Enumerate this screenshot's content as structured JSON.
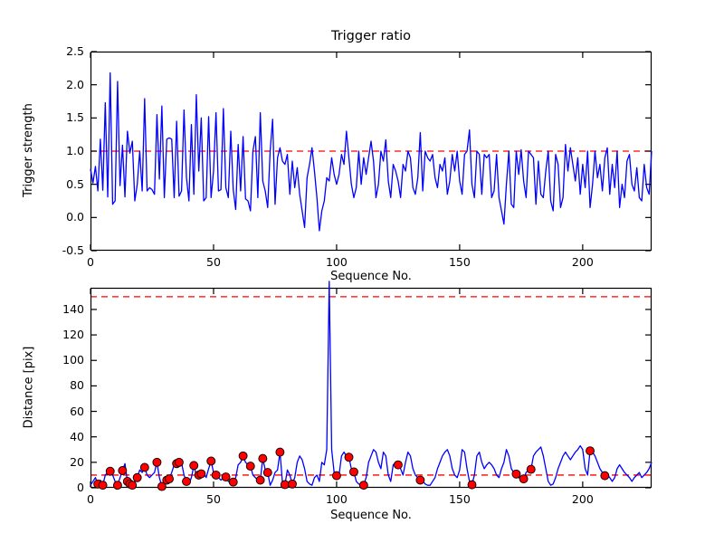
{
  "colors": {
    "line": "#0000ff",
    "threshold": "#ff0000",
    "marker_fill": "#ff0000",
    "marker_edge": "#000000",
    "axis": "#000000",
    "text": "#000000",
    "background": "#ffffff"
  },
  "chart_data": [
    {
      "type": "line",
      "name": "trigger-ratio",
      "title": "Trigger ratio",
      "xlabel": "Sequence No.",
      "ylabel": "Trigger strength",
      "xlim": [
        0,
        228
      ],
      "ylim": [
        -0.5,
        2.5
      ],
      "xticks": [
        0,
        50,
        100,
        150,
        200
      ],
      "xtick_labels": [
        "0",
        "50",
        "100",
        "150",
        "200"
      ],
      "yticks": [
        -0.5,
        0.0,
        0.5,
        1.0,
        1.5,
        2.0,
        2.5
      ],
      "ytick_labels": [
        "-0.5",
        "0.0",
        "0.5",
        "1.0",
        "1.5",
        "2.0",
        "2.5"
      ],
      "grid": false,
      "legend": null,
      "threshold_lines": [
        1.0
      ],
      "series": [
        {
          "name": "trigger-strength",
          "color": "#0000ff",
          "values": [
            0.73,
            0.52,
            0.77,
            0.4,
            1.18,
            0.41,
            1.73,
            0.31,
            2.18,
            0.2,
            0.25,
            2.05,
            0.48,
            1.09,
            0.31,
            1.3,
            0.97,
            1.15,
            0.25,
            0.5,
            1.0,
            0.4,
            1.79,
            0.4,
            0.45,
            0.42,
            0.35,
            1.55,
            0.58,
            1.68,
            0.3,
            1.18,
            1.2,
            1.18,
            0.3,
            1.45,
            0.32,
            0.4,
            1.62,
            0.6,
            0.25,
            1.4,
            0.35,
            1.85,
            0.7,
            1.5,
            0.25,
            0.3,
            1.52,
            0.3,
            0.7,
            1.58,
            0.4,
            0.42,
            1.64,
            0.45,
            0.3,
            1.3,
            0.42,
            0.12,
            1.1,
            0.4,
            1.22,
            0.28,
            0.25,
            0.1,
            1.0,
            1.22,
            0.3,
            1.58,
            0.55,
            0.4,
            0.15,
            1.0,
            1.48,
            0.2,
            0.9,
            1.05,
            0.85,
            0.8,
            0.95,
            0.35,
            0.85,
            0.45,
            0.75,
            0.35,
            0.1,
            -0.15,
            0.6,
            0.8,
            1.05,
            0.7,
            0.3,
            -0.2,
            0.1,
            0.25,
            0.6,
            0.55,
            0.9,
            0.65,
            0.5,
            0.65,
            0.95,
            0.8,
            1.3,
            0.9,
            0.5,
            0.3,
            0.45,
            1.0,
            0.5,
            0.9,
            0.65,
            0.9,
            1.15,
            0.85,
            0.3,
            0.5,
            1.0,
            0.85,
            1.17,
            0.55,
            0.3,
            0.8,
            0.7,
            0.55,
            0.3,
            0.8,
            0.7,
            1.0,
            0.9,
            0.45,
            0.35,
            0.6,
            1.28,
            0.4,
            1.0,
            0.9,
            0.85,
            0.95,
            0.6,
            0.45,
            0.8,
            0.7,
            0.9,
            0.35,
            0.55,
            0.95,
            0.7,
            1.0,
            0.55,
            0.35,
            0.95,
            1.0,
            1.32,
            0.5,
            0.3,
            1.0,
            0.95,
            0.35,
            0.95,
            0.9,
            0.95,
            0.3,
            0.4,
            0.95,
            0.3,
            0.1,
            -0.1,
            0.5,
            1.0,
            0.2,
            0.15,
            1.0,
            0.65,
            1.02,
            0.55,
            0.3,
            1.0,
            0.95,
            0.9,
            0.2,
            0.85,
            0.35,
            0.3,
            0.7,
            1.0,
            0.25,
            0.1,
            0.95,
            0.8,
            0.15,
            0.3,
            1.1,
            0.7,
            1.05,
            0.8,
            0.55,
            0.9,
            0.35,
            0.8,
            0.45,
            1.0,
            0.15,
            0.5,
            1.0,
            0.6,
            0.8,
            0.4,
            0.9,
            1.05,
            0.35,
            0.8,
            0.45,
            1.0,
            0.15,
            0.5,
            0.3,
            0.85,
            0.95,
            0.5,
            0.4,
            0.75,
            0.3,
            0.25,
            0.8,
            0.45,
            0.35,
            1.0
          ]
        }
      ]
    },
    {
      "type": "line",
      "name": "distance",
      "title": "",
      "xlabel": "Sequence No.",
      "ylabel": "Distance [pix]",
      "xlim": [
        0,
        228
      ],
      "ylim": [
        0,
        157
      ],
      "xticks": [
        0,
        50,
        100,
        150,
        200
      ],
      "xtick_labels": [
        "0",
        "50",
        "100",
        "150",
        "200"
      ],
      "yticks": [
        0,
        20,
        40,
        60,
        80,
        100,
        120,
        140
      ],
      "ytick_labels": [
        "0",
        "20",
        "40",
        "60",
        "80",
        "100",
        "120",
        "140"
      ],
      "grid": false,
      "legend": null,
      "threshold_lines": [
        150,
        10
      ],
      "series": [
        {
          "name": "distance-pix",
          "color": "#0000ff",
          "values": [
            2,
            5,
            8,
            3,
            6,
            2,
            10,
            12,
            13,
            10,
            5,
            2,
            8,
            13.5,
            19,
            5,
            3,
            2,
            5,
            8,
            14,
            12,
            16,
            10,
            8,
            10,
            12,
            20,
            8,
            1,
            4,
            6,
            7,
            12,
            18,
            19,
            20,
            19.5,
            10,
            5,
            3,
            8,
            17.5,
            10,
            10,
            11,
            12,
            8,
            15,
            21,
            12,
            10,
            8,
            6,
            8,
            8.5,
            5,
            4,
            4.5,
            8,
            18,
            20,
            25,
            20,
            18,
            17,
            10,
            8,
            6,
            6,
            23,
            14,
            12,
            2,
            6,
            12,
            14,
            28,
            4,
            2.5,
            14,
            10,
            3,
            8,
            20,
            25,
            22,
            15,
            5,
            3,
            2,
            8,
            10,
            5,
            20,
            18,
            30,
            162,
            30,
            12,
            9.5,
            10,
            25,
            28,
            25,
            24,
            15,
            12.5,
            5,
            3,
            2,
            2,
            8,
            20,
            25,
            30,
            28,
            20,
            15,
            28,
            25,
            10,
            5,
            18,
            20,
            18,
            15,
            10,
            20,
            28,
            25,
            15,
            10,
            8,
            6,
            5.3,
            3,
            2,
            2,
            5,
            8,
            15,
            20,
            25,
            28,
            30,
            25,
            15,
            10,
            8,
            14,
            30,
            28,
            15,
            5,
            2.4,
            10,
            25,
            28,
            20,
            15,
            18,
            20,
            18,
            15,
            10,
            8,
            15,
            20,
            30,
            25,
            15,
            12,
            10.8,
            8,
            7,
            7,
            12,
            14,
            14.5,
            25,
            28,
            30,
            32,
            25,
            15,
            5,
            2,
            3,
            8,
            15,
            20,
            25,
            28,
            25,
            22,
            25,
            28,
            30,
            33,
            30,
            15,
            10,
            29,
            28,
            25,
            20,
            15,
            12,
            9.5,
            10,
            8,
            5,
            8,
            15,
            18,
            15,
            12,
            10,
            8,
            5,
            8,
            10,
            12,
            8,
            10,
            12,
            15,
            20
          ]
        }
      ],
      "markers": [
        [
          3,
          3
        ],
        [
          5,
          2
        ],
        [
          8,
          13
        ],
        [
          11,
          2
        ],
        [
          13,
          13.5
        ],
        [
          15,
          5
        ],
        [
          16,
          3
        ],
        [
          17,
          2
        ],
        [
          19,
          8
        ],
        [
          22,
          16
        ],
        [
          27,
          20
        ],
        [
          29,
          1
        ],
        [
          31,
          6
        ],
        [
          32,
          7
        ],
        [
          35,
          19
        ],
        [
          36,
          20
        ],
        [
          39,
          5
        ],
        [
          42,
          17.5
        ],
        [
          44,
          10
        ],
        [
          45,
          11
        ],
        [
          49,
          21
        ],
        [
          51,
          10
        ],
        [
          55,
          8.5
        ],
        [
          58,
          4.5
        ],
        [
          62,
          25
        ],
        [
          65,
          17
        ],
        [
          69,
          6
        ],
        [
          70,
          23
        ],
        [
          72,
          12
        ],
        [
          77,
          28
        ],
        [
          79,
          2.5
        ],
        [
          82,
          3
        ],
        [
          100,
          9.5
        ],
        [
          105,
          24
        ],
        [
          107,
          12.5
        ],
        [
          111,
          2
        ],
        [
          125,
          18
        ],
        [
          134,
          6
        ],
        [
          155,
          2.4
        ],
        [
          173,
          10.8
        ],
        [
          176,
          7
        ],
        [
          179,
          14.5
        ],
        [
          203,
          29
        ],
        [
          209,
          9.5
        ]
      ]
    }
  ]
}
